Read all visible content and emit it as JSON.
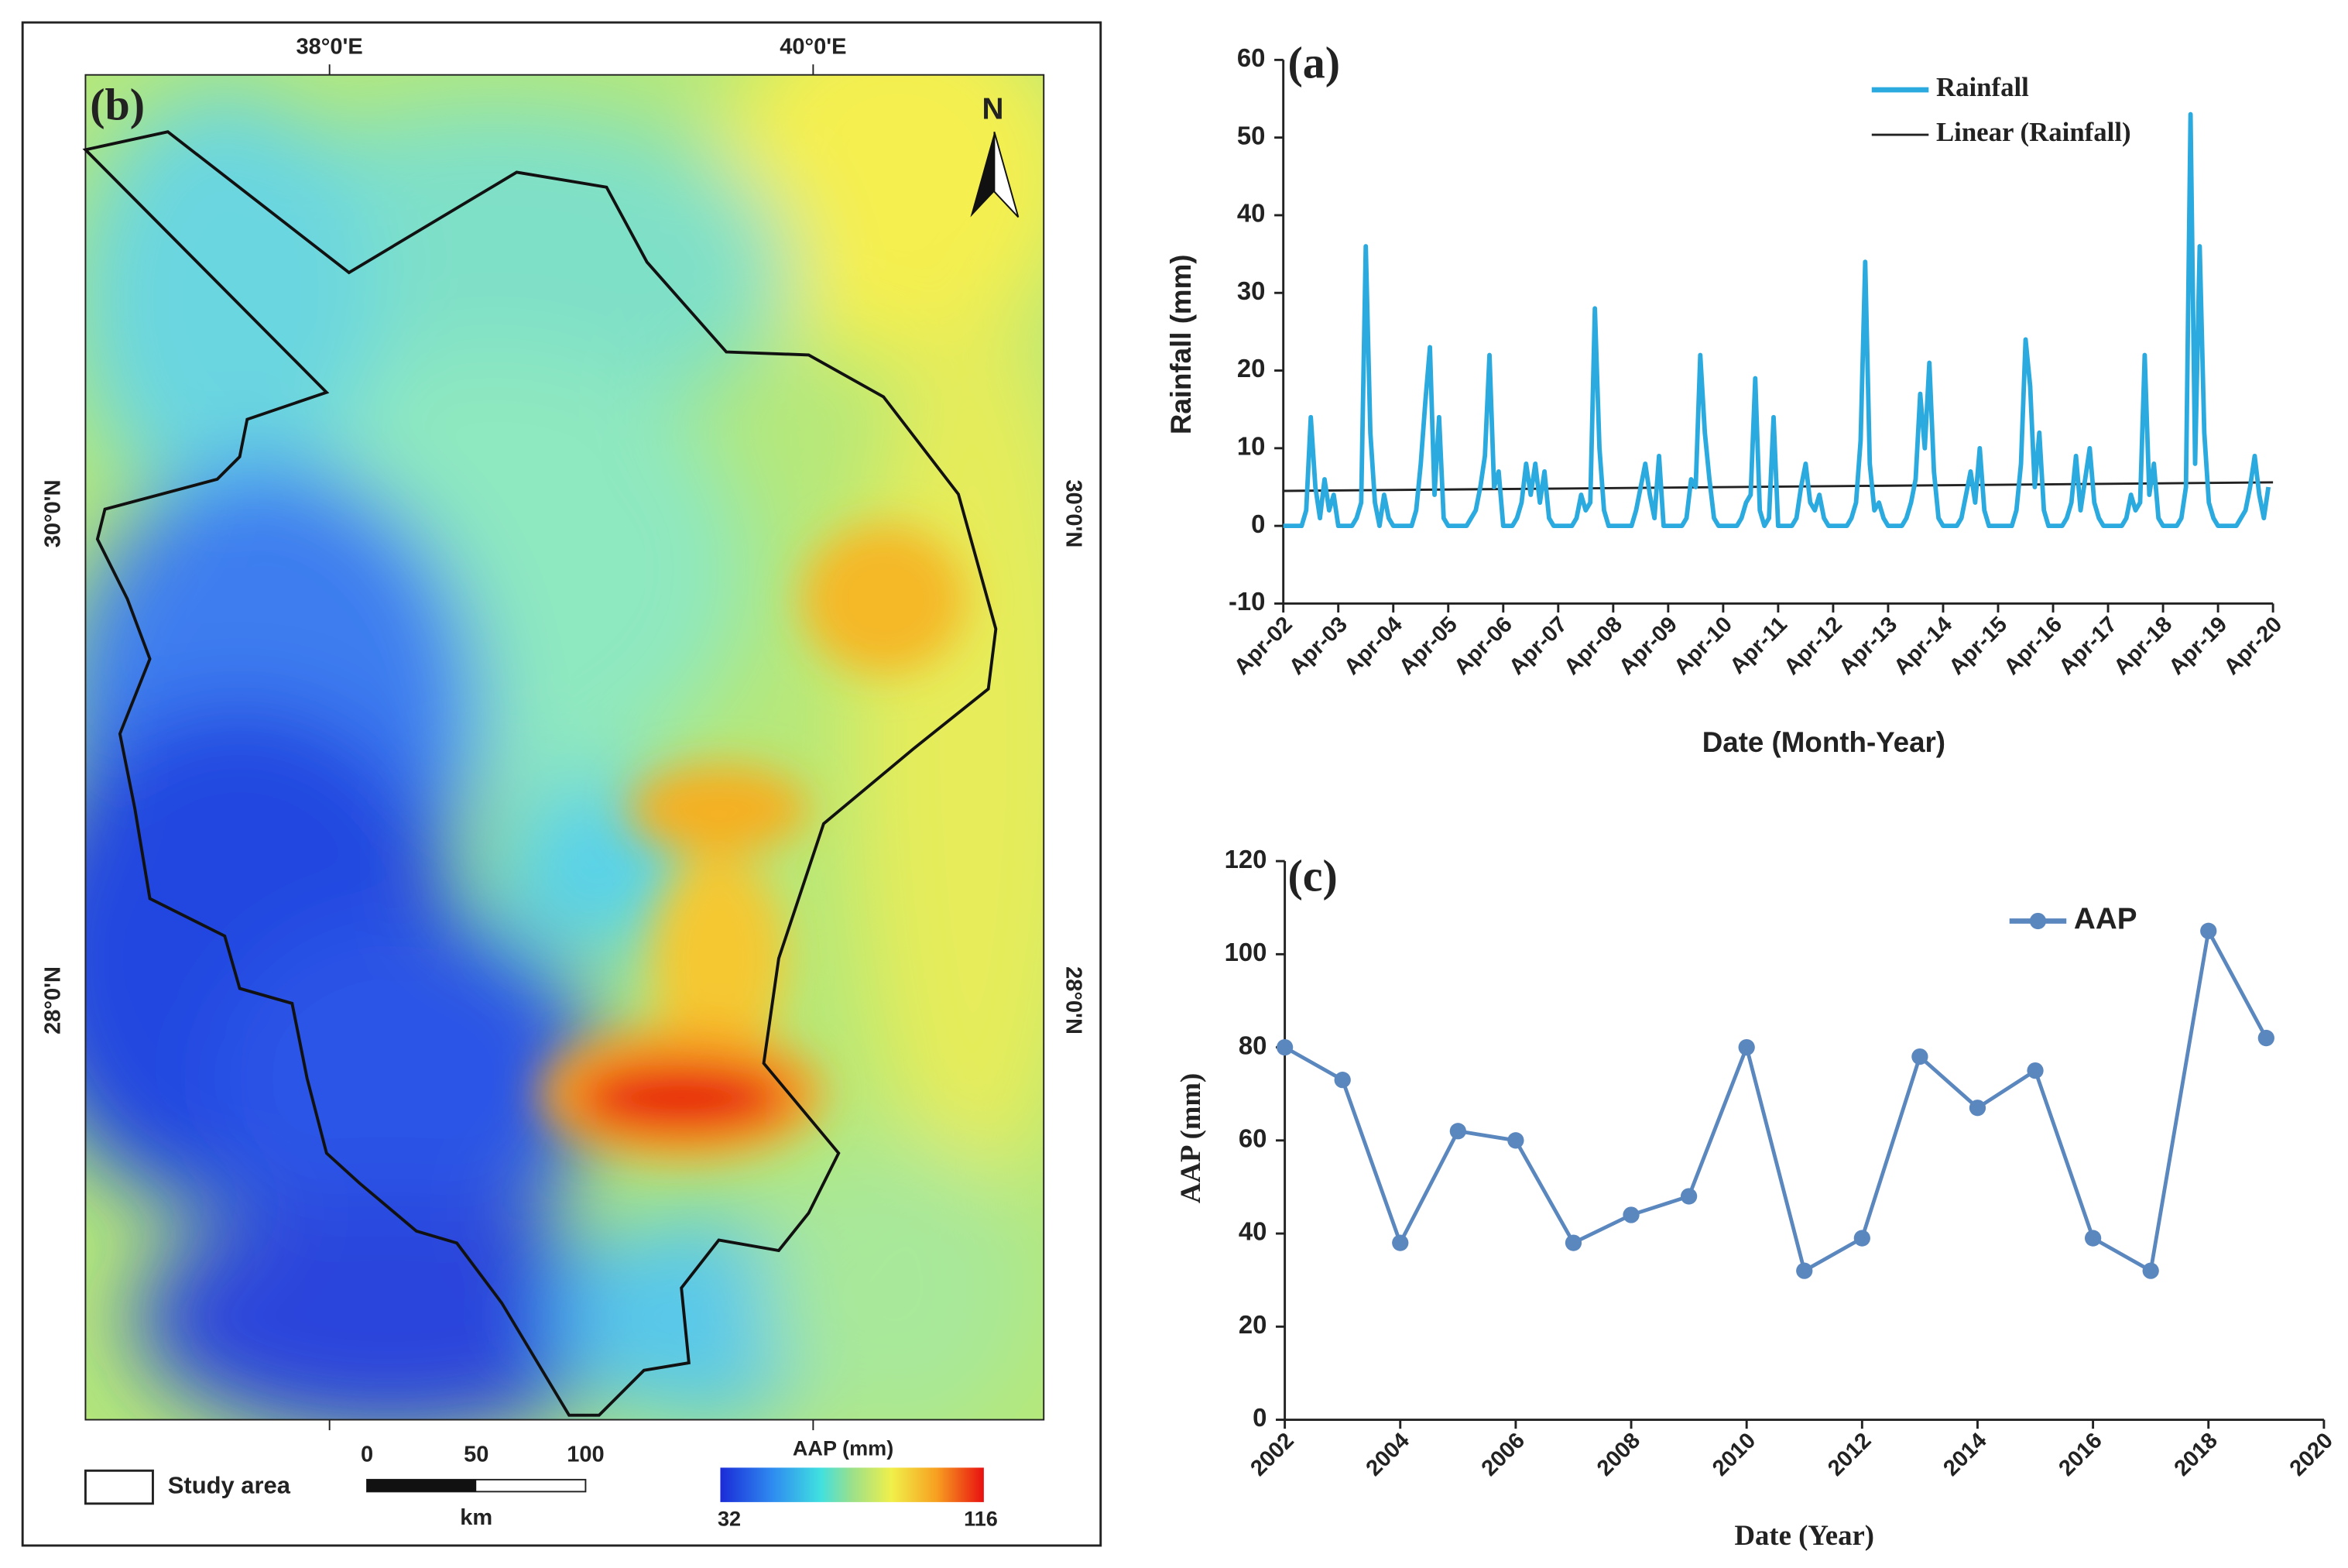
{
  "chart_data": [
    {
      "type": "line",
      "title": "(a)",
      "xlabel": "Date (Month-Year)",
      "ylabel": "Rainfall (mm)",
      "categories": [
        "Apr-02",
        null,
        null,
        null,
        null,
        null,
        null,
        null,
        null,
        null,
        null,
        null,
        "Apr-03",
        null,
        null,
        null,
        null,
        null,
        null,
        null,
        null,
        null,
        null,
        null,
        "Apr-04",
        null,
        null,
        null,
        null,
        null,
        null,
        null,
        null,
        null,
        null,
        null,
        "Apr-05",
        null,
        null,
        null,
        null,
        null,
        null,
        null,
        null,
        null,
        null,
        null,
        "Apr-06",
        null,
        null,
        null,
        null,
        null,
        null,
        null,
        null,
        null,
        null,
        null,
        "Apr-07",
        null,
        null,
        null,
        null,
        null,
        null,
        null,
        null,
        null,
        null,
        null,
        "Apr-08",
        null,
        null,
        null,
        null,
        null,
        null,
        null,
        null,
        null,
        null,
        null,
        "Apr-09",
        null,
        null,
        null,
        null,
        null,
        null,
        null,
        null,
        null,
        null,
        null,
        "Apr-10",
        null,
        null,
        null,
        null,
        null,
        null,
        null,
        null,
        null,
        null,
        null,
        "Apr-11",
        null,
        null,
        null,
        null,
        null,
        null,
        null,
        null,
        null,
        null,
        null,
        "Apr-12",
        null,
        null,
        null,
        null,
        null,
        null,
        null,
        null,
        null,
        null,
        null,
        "Apr-13",
        null,
        null,
        null,
        null,
        null,
        null,
        null,
        null,
        null,
        null,
        null,
        "Apr-14",
        null,
        null,
        null,
        null,
        null,
        null,
        null,
        null,
        null,
        null,
        null,
        "Apr-15",
        null,
        null,
        null,
        null,
        null,
        null,
        null,
        null,
        null,
        null,
        null,
        "Apr-16",
        null,
        null,
        null,
        null,
        null,
        null,
        null,
        null,
        null,
        null,
        null,
        "Apr-17",
        null,
        null,
        null,
        null,
        null,
        null,
        null,
        null,
        null,
        null,
        null,
        "Apr-18",
        null,
        null,
        null,
        null,
        null,
        null,
        null,
        null,
        null,
        null,
        null,
        "Apr-19",
        null,
        null,
        null,
        null,
        null,
        null,
        null,
        null,
        null,
        null,
        null,
        "Apr-20"
      ],
      "series": [
        {
          "name": "Rainfall",
          "color": "#2aaade",
          "values": [
            0,
            0,
            0,
            0,
            0,
            2,
            14,
            5,
            1,
            6,
            2,
            4,
            0,
            0,
            0,
            0,
            1,
            3,
            36,
            12,
            3,
            0,
            4,
            1,
            0,
            0,
            0,
            0,
            0,
            2,
            8,
            16,
            23,
            4,
            14,
            1,
            0,
            0,
            0,
            0,
            0,
            1,
            2,
            5,
            9,
            22,
            5,
            7,
            0,
            0,
            0,
            1,
            3,
            8,
            4,
            8,
            3,
            7,
            1,
            0,
            0,
            0,
            0,
            0,
            1,
            4,
            2,
            3,
            28,
            10,
            2,
            0,
            0,
            0,
            0,
            0,
            0,
            2,
            5,
            8,
            4,
            1,
            9,
            0,
            0,
            0,
            0,
            0,
            1,
            6,
            5,
            22,
            12,
            6,
            1,
            0,
            0,
            0,
            0,
            0,
            1,
            3,
            4,
            19,
            2,
            0,
            1,
            14,
            0,
            0,
            0,
            0,
            1,
            5,
            8,
            3,
            2,
            4,
            1,
            0,
            0,
            0,
            0,
            0,
            1,
            3,
            11,
            34,
            8,
            2,
            3,
            1,
            0,
            0,
            0,
            0,
            1,
            3,
            6,
            17,
            10,
            21,
            7,
            1,
            0,
            0,
            0,
            0,
            1,
            4,
            7,
            3,
            10,
            2,
            0,
            0,
            0,
            0,
            0,
            0,
            2,
            8,
            24,
            18,
            5,
            12,
            2,
            0,
            0,
            0,
            0,
            1,
            3,
            9,
            2,
            6,
            10,
            3,
            1,
            0,
            0,
            0,
            0,
            0,
            1,
            4,
            2,
            3,
            22,
            4,
            8,
            1,
            0,
            0,
            0,
            0,
            1,
            5,
            53,
            8,
            36,
            12,
            3,
            1,
            0,
            0,
            0,
            0,
            0,
            1,
            2,
            5,
            9,
            4,
            1,
            5,
            null
          ]
        }
      ],
      "trendline": {
        "name": "Linear (Rainfall)",
        "color": "#222222",
        "start": 4.5,
        "end": 5.6
      },
      "ylim": [
        -10,
        60
      ],
      "yticks": [
        -10,
        0,
        10,
        20,
        30,
        40,
        50,
        60
      ],
      "legend": "top-right"
    },
    {
      "type": "line",
      "title": "(c)",
      "xlabel": "Date (Year)",
      "ylabel": "AAP (mm)",
      "x": [
        2002,
        2003,
        2004,
        2005,
        2006,
        2007,
        2008,
        2009,
        2010,
        2011,
        2012,
        2013,
        2014,
        2015,
        2016,
        2017,
        2018,
        2019
      ],
      "series": [
        {
          "name": "AAP",
          "color": "#5b87bf",
          "values": [
            80,
            73,
            38,
            62,
            60,
            38,
            44,
            48,
            80,
            32,
            39,
            78,
            67,
            75,
            39,
            32,
            105,
            82
          ]
        }
      ],
      "xlim": [
        2002,
        2020
      ],
      "xticks": [
        2002,
        2004,
        2006,
        2008,
        2010,
        2012,
        2014,
        2016,
        2018,
        2020
      ],
      "ylim": [
        0,
        120
      ],
      "yticks": [
        0,
        20,
        40,
        60,
        80,
        100,
        120
      ],
      "markers": true,
      "legend": "top-right"
    }
  ],
  "map": {
    "label": "(b)",
    "lon_labels": [
      "38°0'E",
      "40°0'E"
    ],
    "lat_labels": [
      "30°0'N",
      "28°0'N"
    ],
    "north": "N",
    "legend": {
      "study_area": "Study area",
      "scale": [
        "0",
        "50",
        "100"
      ],
      "scale_unit": "km",
      "colorbar_title": "AAP (mm)",
      "colorbar_min": "32",
      "colorbar_max": "116"
    }
  }
}
